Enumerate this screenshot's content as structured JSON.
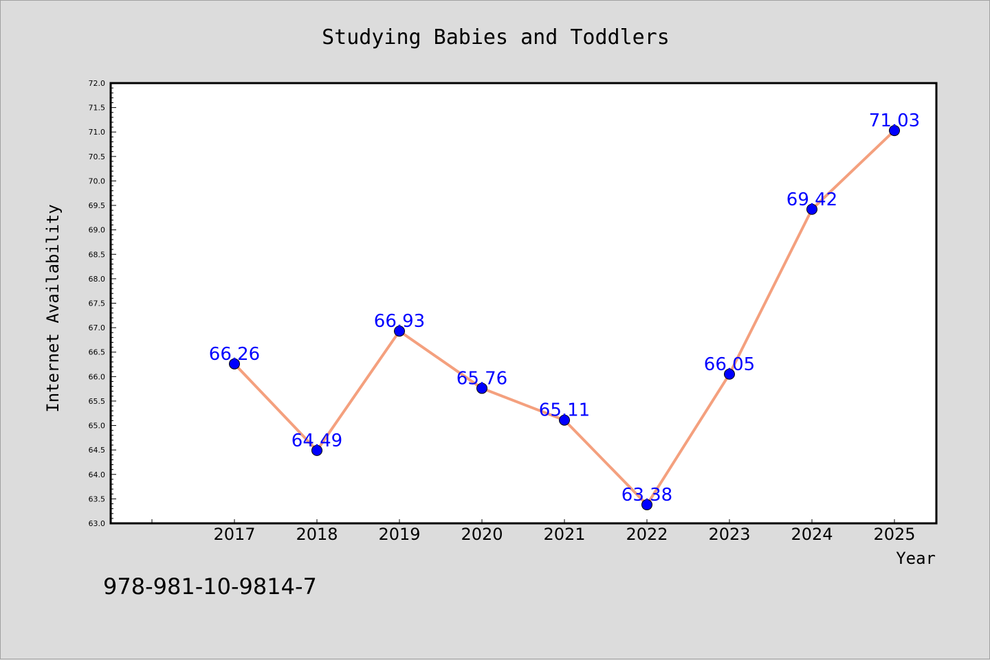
{
  "chart_data": {
    "type": "line",
    "title": "Studying Babies and Toddlers",
    "xlabel": "Year",
    "ylabel": "Internet Availability",
    "categories": [
      "2017",
      "2018",
      "2019",
      "2020",
      "2021",
      "2022",
      "2023",
      "2024",
      "2025"
    ],
    "series": [
      {
        "values": [
          66.26,
          64.49,
          66.93,
          65.76,
          65.11,
          63.38,
          66.05,
          69.42,
          71.03
        ],
        "data_labels": [
          "66.26",
          "64.49",
          "66.93",
          "65.76",
          "65.11",
          "63.38",
          "66.05",
          "69.42",
          "71.03"
        ]
      }
    ],
    "ylim": [
      63.0,
      72.0
    ],
    "yticks": [
      "63.0",
      "63.5",
      "64.0",
      "64.5",
      "65.0",
      "65.5",
      "66.0",
      "66.5",
      "67.0",
      "67.5",
      "68.0",
      "68.5",
      "69.0",
      "69.5",
      "70.0",
      "70.5",
      "71.0",
      "71.5",
      "72.0"
    ],
    "grid": false,
    "legend": "none",
    "colors": {
      "line": "#f4a07e",
      "marker": "#0000ff",
      "data_label": "#0000ff",
      "background": "#dcdcdc",
      "plot_background": "#ffffff"
    }
  },
  "footer": {
    "isbn": "978-981-10-9814-7"
  }
}
